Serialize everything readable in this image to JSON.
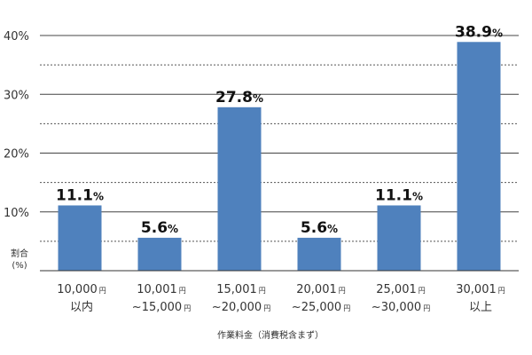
{
  "chart_data": {
    "type": "bar",
    "title": "",
    "xlabel": "作業料金（消費税含まず）",
    "ylabel_lines": [
      "割合",
      "(%)"
    ],
    "ylim": [
      0,
      40
    ],
    "yticks": [
      10,
      20,
      30,
      40
    ],
    "ytick_labels": [
      "10%",
      "20%",
      "30%",
      "40%"
    ],
    "minor_gridlines": [
      5,
      15,
      25,
      35
    ],
    "grid": true,
    "bar_color": "#4f81bd",
    "unit_mark": "円",
    "categories": [
      {
        "lines": [
          {
            "text": "10,000",
            "unit": "円"
          },
          {
            "text": "以内",
            "unit": ""
          }
        ]
      },
      {
        "lines": [
          {
            "text": "10,001",
            "unit": "円"
          },
          {
            "text": "~15,000",
            "unit": "円"
          }
        ]
      },
      {
        "lines": [
          {
            "text": "15,001",
            "unit": "円"
          },
          {
            "text": "~20,000",
            "unit": "円"
          }
        ]
      },
      {
        "lines": [
          {
            "text": "20,001",
            "unit": "円"
          },
          {
            "text": "~25,000",
            "unit": "円"
          }
        ]
      },
      {
        "lines": [
          {
            "text": "25,001",
            "unit": "円"
          },
          {
            "text": "~30,000",
            "unit": "円"
          }
        ]
      },
      {
        "lines": [
          {
            "text": "30,001",
            "unit": "円"
          },
          {
            "text": "以上",
            "unit": ""
          }
        ]
      }
    ],
    "values": [
      11.1,
      5.6,
      27.8,
      5.6,
      11.1,
      38.9
    ],
    "value_labels": [
      "11.1",
      "5.6",
      "27.8",
      "5.6",
      "11.1",
      "38.9"
    ],
    "value_suffix": "%"
  }
}
